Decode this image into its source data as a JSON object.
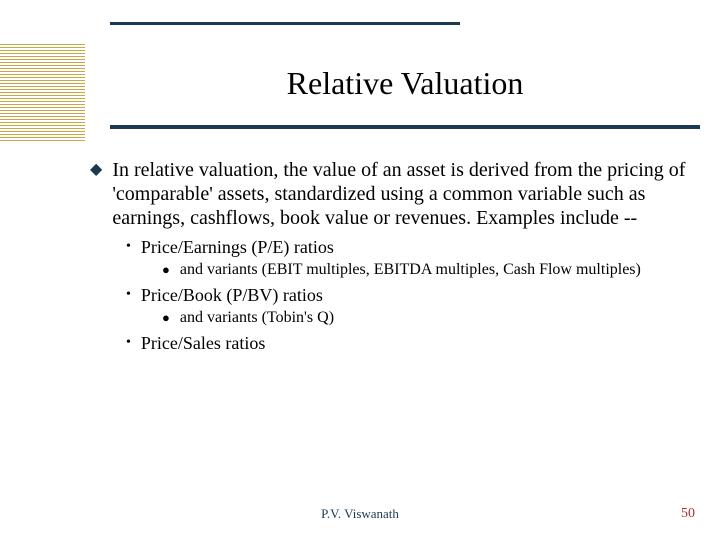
{
  "colors": {
    "rule": "#1a3a52",
    "hatch": "#c9a84a",
    "background": "#ffffff",
    "text": "#000000",
    "footer_author": "#1a3a52",
    "footer_page": "#b03030"
  },
  "title": "Relative Valuation",
  "main": {
    "text": "In relative valuation, the value of an asset is derived from the pricing of 'comparable' assets, standardized using a common variable such as earnings, cashflows, book value or revenues. Examples include --"
  },
  "sub": [
    {
      "text": "Price/Earnings (P/E) ratios",
      "children": [
        {
          "text": "and variants (EBIT multiples, EBITDA multiples, Cash Flow multiples)"
        }
      ]
    },
    {
      "text": "Price/Book (P/BV) ratios",
      "children": [
        {
          "text": "and variants (Tobin's Q)"
        }
      ]
    },
    {
      "text": "Price/Sales ratios",
      "children": []
    }
  ],
  "footer": {
    "author": "P.V. Viswanath",
    "page": "50"
  },
  "markers": {
    "l1": "◆",
    "l2": "•",
    "l3": "●"
  }
}
